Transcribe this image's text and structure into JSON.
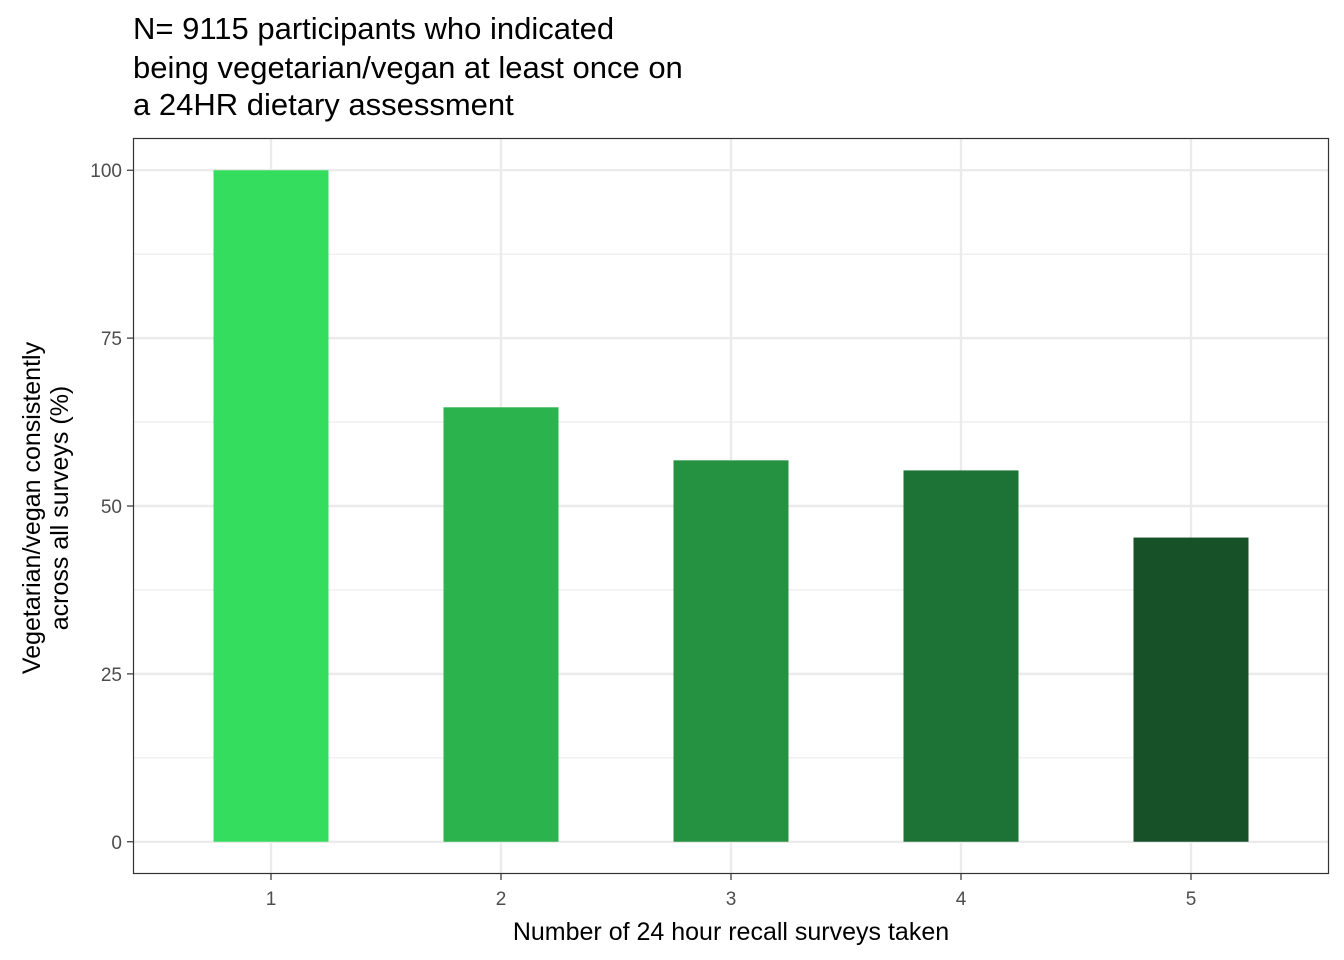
{
  "chart_data": {
    "type": "bar",
    "title_lines": [
      "N= 9115 participants who indicated",
      "being vegetarian/vegan at least once on",
      "a 24HR dietary assessment"
    ],
    "xlabel": "Number of 24 hour recall surveys taken",
    "ylabel_lines": [
      "Vegetarian/vegan consistently",
      "across all surveys (%)"
    ],
    "categories": [
      "1",
      "2",
      "3",
      "4",
      "5"
    ],
    "values": [
      100,
      64.7,
      56.8,
      55.3,
      45.3
    ],
    "bar_colors": [
      "#35dd5e",
      "#2bb44e",
      "#249241",
      "#1d7335",
      "#165127"
    ],
    "y_ticks": [
      "0",
      "25",
      "50",
      "75",
      "100"
    ],
    "ylim": [
      -4.8,
      104.8
    ],
    "grid": true,
    "legend": "none"
  }
}
